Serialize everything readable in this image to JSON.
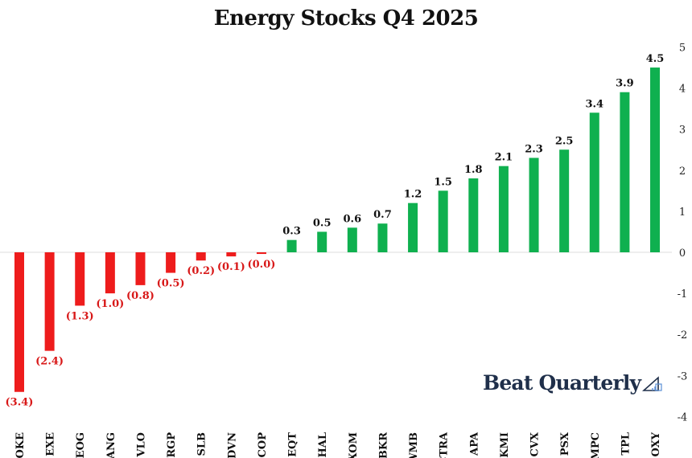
{
  "chart_data": {
    "type": "bar",
    "title": "Energy Stocks Q4 2025",
    "categories": [
      "OKE",
      "EXE",
      "EOG",
      "FANG",
      "VLO",
      "TRGP",
      "SLB",
      "DVN",
      "COP",
      "EQT",
      "HAL",
      "XOM",
      "BKR",
      "WMB",
      "CTRA",
      "APA",
      "KMI",
      "CVX",
      "PSX",
      "MPC",
      "TPL",
      "OXY"
    ],
    "values": [
      -3.4,
      -2.4,
      -1.3,
      -1.0,
      -0.8,
      -0.5,
      -0.2,
      -0.1,
      -0.04,
      0.3,
      0.5,
      0.6,
      0.7,
      1.2,
      1.5,
      1.8,
      2.1,
      2.3,
      2.5,
      3.4,
      3.9,
      4.5
    ],
    "data_labels": [
      "(3.4)",
      "(2.4)",
      "(1.3)",
      "(1.0)",
      "(0.8)",
      "(0.5)",
      "(0.2)",
      "(0.1)",
      "(0.0)",
      "0.3",
      "0.5",
      "0.6",
      "0.7",
      "1.2",
      "1.5",
      "1.8",
      "2.1",
      "2.3",
      "2.5",
      "3.4",
      "3.9",
      "4.5"
    ],
    "y_ticks": [
      5,
      4,
      3,
      2,
      1,
      0,
      -1,
      -2,
      -3,
      -4
    ],
    "ylim": [
      -4,
      5
    ],
    "y_axis_side": "right",
    "grid": false,
    "colors": {
      "positive": "#0fb04f",
      "negative": "#ee1c1c",
      "label_positive": "#111111",
      "label_negative": "#d81818"
    }
  },
  "branding": {
    "name": "Beat Quarterly",
    "icon": "pencil-ruler-icon"
  }
}
